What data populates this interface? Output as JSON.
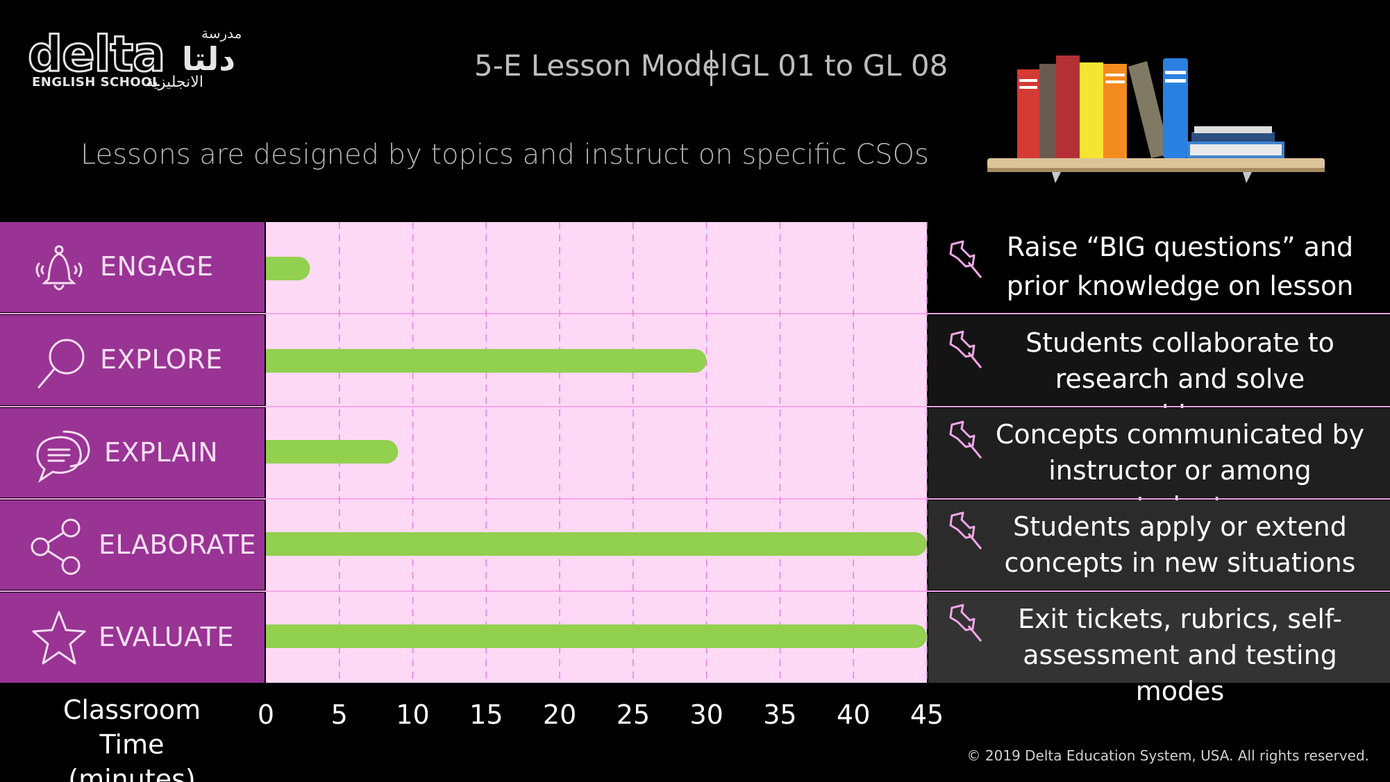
{
  "logo": {
    "word": "delta",
    "sub": "ENGLISH SCHOOL",
    "arabic_top": "مدرسة",
    "arabic_mid": "دلتا",
    "arabic_sub": "الانجليزية"
  },
  "header": {
    "title_left": "5-E Lesson Model",
    "title_right": "GL 01 to GL 08",
    "subtitle": "Lessons are designed by topics and instruct on specific CSOs"
  },
  "colors": {
    "stage_bg": "#993394",
    "plot_bg": "#fdd9f6",
    "bar": "#92d050",
    "grid": "#e67fd9",
    "pin": "#f4a6e9"
  },
  "stages": [
    {
      "label": "ENGAGE",
      "icon": "bell-icon",
      "description_lines": [
        "Raise “BIG questions” and",
        "prior knowledge on lesson"
      ]
    },
    {
      "label": "EXPLORE",
      "icon": "magnifier-icon",
      "description_lines": [
        "Students collaborate to",
        "research and solve problems"
      ]
    },
    {
      "label": "EXPLAIN",
      "icon": "chat-bubble-icon",
      "description_lines": [
        "Concepts communicated by",
        "instructor or among students"
      ]
    },
    {
      "label": "ELABORATE",
      "icon": "share-icon",
      "description_lines": [
        "Students apply or extend",
        "concepts in new situations"
      ]
    },
    {
      "label": "EVALUATE",
      "icon": "star-icon",
      "description_lines": [
        "Exit tickets, rubrics, self-",
        "assessment and testing modes"
      ]
    }
  ],
  "axis": {
    "title_line1": "Classroom Time",
    "title_line2": "(minutes)"
  },
  "chart_data": {
    "type": "bar",
    "orientation": "horizontal",
    "categories": [
      "ENGAGE",
      "EXPLORE",
      "EXPLAIN",
      "ELABORATE",
      "EVALUATE"
    ],
    "values": [
      3,
      30,
      9,
      45,
      45
    ],
    "xlabel": "Classroom Time (minutes)",
    "xlim": [
      0,
      45
    ],
    "xticks": [
      "0",
      "5",
      "10",
      "15",
      "20",
      "25",
      "30",
      "35",
      "40",
      "45"
    ],
    "grid": true
  },
  "footer": {
    "copyright": "© 2019 Delta Education System, USA. All rights reserved."
  }
}
